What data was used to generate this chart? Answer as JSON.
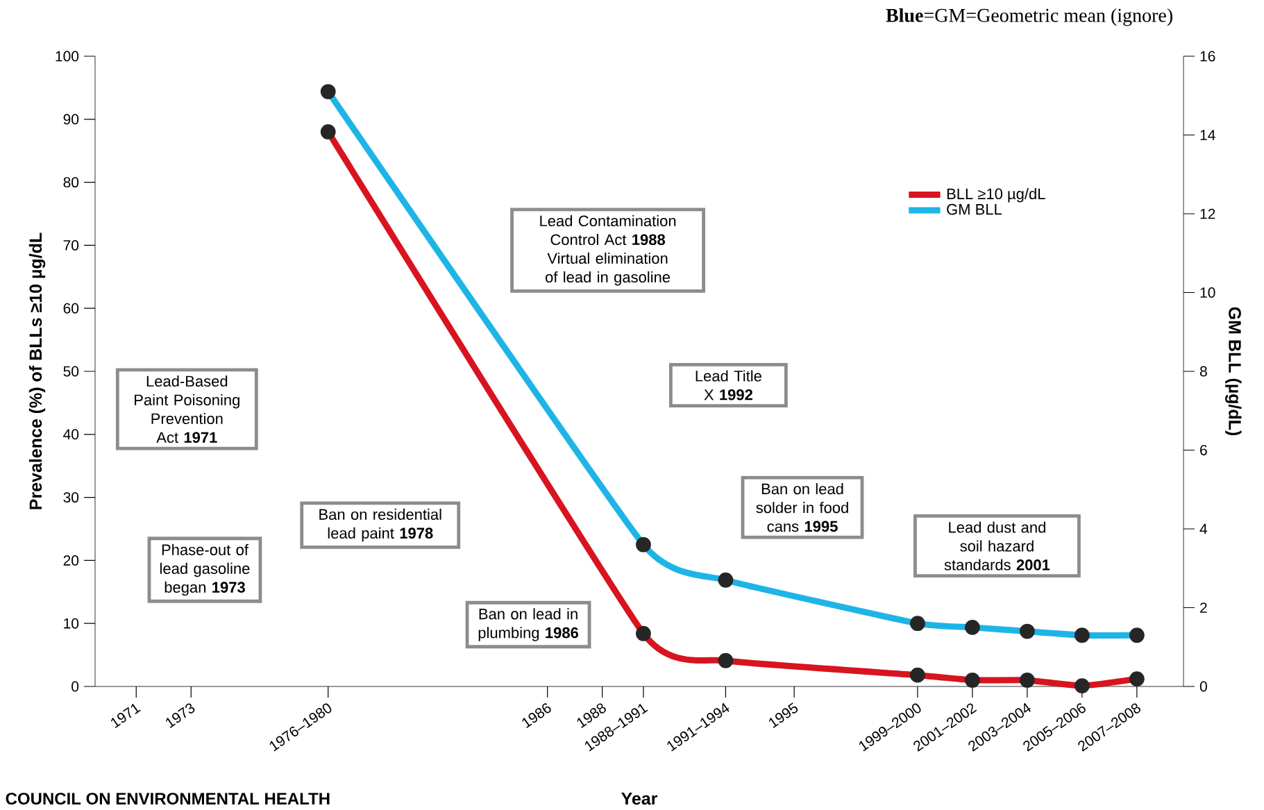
{
  "chart_data": {
    "type": "line",
    "xlabel": "Year",
    "ylabel": "Prevalence (%) of BLLs ≥10 µg/dL",
    "y2label": "GM BLL (µg/dL)",
    "xlim": [
      1969.5,
      2009.2
    ],
    "ylim": [
      0,
      100
    ],
    "y2lim": [
      0,
      16
    ],
    "xticks": [
      1971,
      1973,
      {
        "value": 1978,
        "label": "1976–1980"
      },
      1986,
      1988,
      {
        "value": 1989.5,
        "label": "1988–1991"
      },
      {
        "value": 1992.5,
        "label": "1991–1994"
      },
      1995,
      {
        "value": 1999.5,
        "label": "1999–2000"
      },
      {
        "value": 2001.5,
        "label": "2001–2002"
      },
      {
        "value": 2003.5,
        "label": "2003–2004"
      },
      {
        "value": 2005.5,
        "label": "2005–2006"
      },
      {
        "value": 2007.5,
        "label": "2007–2008"
      }
    ],
    "yticks": [
      0,
      10,
      20,
      30,
      40,
      50,
      60,
      70,
      80,
      90,
      100
    ],
    "y2ticks": [
      0,
      2,
      4,
      6,
      8,
      10,
      12,
      14,
      16
    ],
    "x": [
      1978,
      1989.5,
      1992.5,
      1999.5,
      2001.5,
      2003.5,
      2005.5,
      2007.5
    ],
    "series": [
      {
        "name": "BLL ≥10 µg/dL",
        "color": "#d7141f",
        "values": [
          88,
          8.4,
          4.1,
          1.8,
          1.0,
          1.0,
          0.1,
          1.2
        ]
      },
      {
        "name": "GM BLL",
        "color": "#1fb4e6",
        "axis": "y2",
        "values": [
          15.1,
          3.6,
          2.7,
          1.6,
          1.5,
          1.4,
          1.3,
          1.3
        ]
      }
    ],
    "marker": "circle",
    "legend": "top right",
    "grid": false,
    "annotations": [
      "**Blue**=GM=Geometric mean (ignore)",
      "Lead-Based Paint Poisoning Prevention Act **1971**",
      "Phase-out of lead gasoline began **1973**",
      "Ban on residential lead paint **1978**",
      "Ban on lead in plumbing **1986**",
      "Lead Contamination Control Act **1988** Virtual elimination of lead in gasoline",
      "Lead Title X **1992**",
      "Ban on lead solder in food cans **1995**",
      "Lead dust and soil hazard standards **2001**",
      "**COUNCIL ON ENVIRONMENTAL HEALTH**"
    ]
  }
}
